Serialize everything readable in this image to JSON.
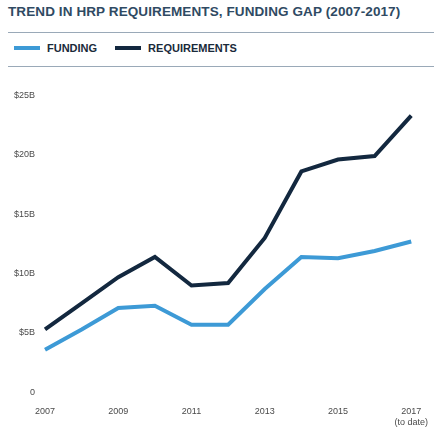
{
  "chart_data": {
    "type": "line",
    "title": "TREND IN HRP REQUIREMENTS, FUNDING GAP (2007-2017)",
    "categories": [
      "2007",
      null,
      "2009",
      null,
      "2011",
      null,
      "2013",
      null,
      "2015",
      null,
      "2017\n(to date)"
    ],
    "series": [
      {
        "name": "FUNDING",
        "color": "#3d9ad6",
        "values": [
          3.6,
          5.3,
          7.1,
          7.3,
          5.7,
          5.7,
          8.7,
          11.4,
          11.3,
          11.9,
          12.7
        ]
      },
      {
        "name": "REQUIREMENTS",
        "color": "#13283f",
        "values": [
          5.3,
          7.5,
          9.7,
          11.4,
          9.0,
          9.2,
          13.0,
          18.6,
          19.6,
          19.9,
          23.3
        ]
      }
    ],
    "ylim": [
      0,
      25
    ],
    "yticks": [
      0,
      {
        "value": 5,
        "label": "$5B"
      },
      {
        "value": 10,
        "label": "$10B"
      },
      {
        "value": 15,
        "label": "$15B"
      },
      {
        "value": 20,
        "label": "$20B"
      },
      {
        "value": 25,
        "label": "$25B"
      }
    ],
    "grid": false,
    "legend": "top"
  }
}
